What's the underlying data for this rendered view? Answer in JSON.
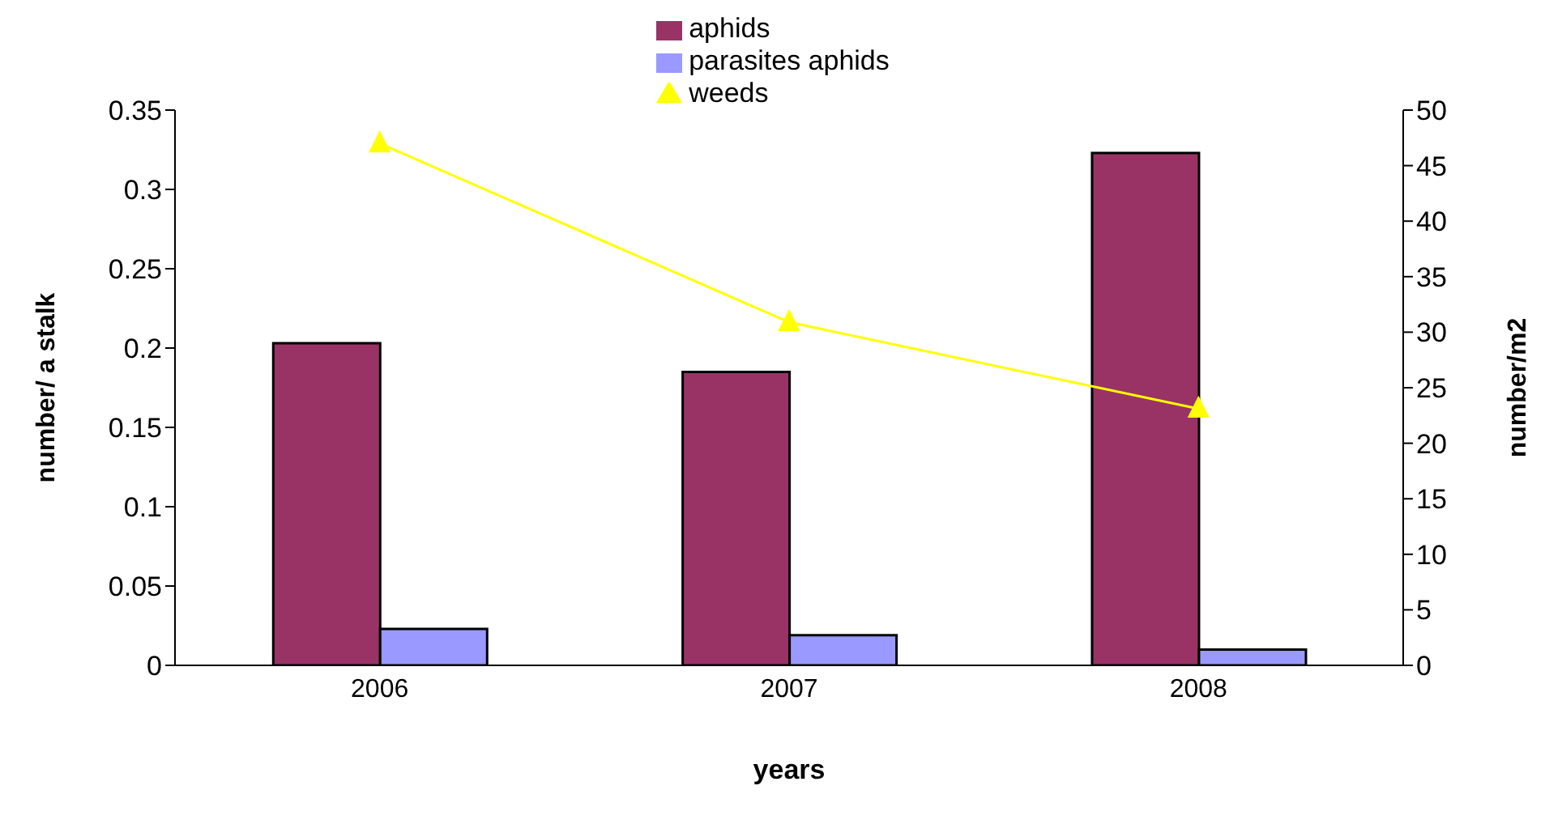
{
  "chart_data": {
    "type": "bar",
    "categories": [
      "2006",
      "2007",
      "2008"
    ],
    "xlabel": "years",
    "ylabel": "number/ a stalk",
    "y2label": "number/m2",
    "series": [
      {
        "name": "aphids",
        "color": "#993366",
        "values": [
          0.203,
          0.185,
          0.323
        ]
      },
      {
        "name": "parasites aphids",
        "color": "#9999ff",
        "values": [
          0.023,
          0.019,
          0.01
        ]
      },
      {
        "name": "weeds",
        "type": "line",
        "axis": "y2",
        "color": "#ffff00",
        "marker": "triangle",
        "values": [
          47.0,
          30.9,
          23.1
        ]
      }
    ],
    "ylim": [
      0,
      0.35
    ],
    "yticks": [
      0,
      0.05,
      0.1,
      0.15,
      0.2,
      0.25,
      0.3,
      0.35
    ],
    "y2lim": [
      0,
      50
    ],
    "y2ticks": [
      0,
      5,
      10,
      15,
      20,
      25,
      30,
      35,
      40,
      45,
      50
    ],
    "grid": false,
    "legend": "top"
  }
}
